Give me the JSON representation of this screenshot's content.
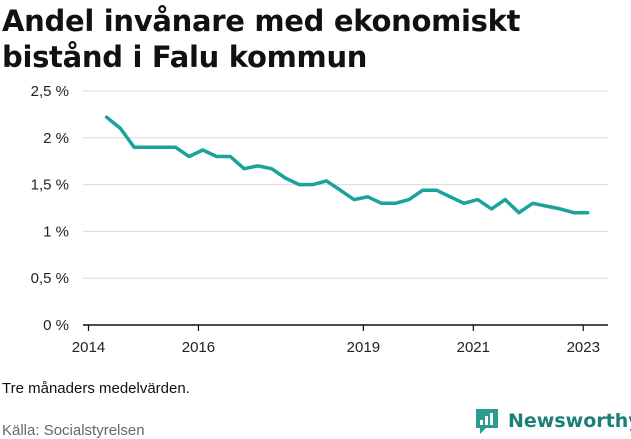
{
  "title": "Andel invånare med ekonomiskt bistånd i Falu kommun",
  "footnote": "Tre månaders medelvärden.",
  "source": "Källa: Socialstyrelsen",
  "brand": {
    "name": "Newsworthy",
    "icon": "newsworthy-logo-icon",
    "color": "#2a9d8f"
  },
  "chart_data": {
    "type": "line",
    "title": "Andel invånare med ekonomiskt bistånd i Falu kommun",
    "xlabel": "",
    "ylabel": "",
    "xlim": [
      2013.9,
      2023.45
    ],
    "ylim": [
      0,
      2.5
    ],
    "x_ticks": [
      2014,
      2016,
      2019,
      2021,
      2023
    ],
    "x_tick_labels": [
      "2014",
      "2016",
      "2019",
      "2021",
      "2023"
    ],
    "y_ticks": [
      0,
      0.5,
      1,
      1.5,
      2,
      2.5
    ],
    "y_tick_labels": [
      "0 %",
      "0,5 %",
      "1 %",
      "1,5 %",
      "2 %",
      "2,5 %"
    ],
    "grid": true,
    "line_color": "#1aa39a",
    "series": [
      {
        "x": [
          2014.33,
          2014.58,
          2014.83,
          2015.08,
          2015.33,
          2015.58,
          2015.83,
          2016.08,
          2016.33,
          2016.58,
          2016.83,
          2017.08,
          2017.33,
          2017.58,
          2017.83,
          2018.08,
          2018.33,
          2018.58,
          2018.83,
          2019.08,
          2019.33,
          2019.58,
          2019.83,
          2020.08,
          2020.33,
          2020.58,
          2020.83,
          2021.08,
          2021.33,
          2021.58,
          2021.83,
          2022.08,
          2022.33,
          2022.58,
          2022.83,
          2023.08
        ],
        "y": [
          2.22,
          2.1,
          1.9,
          1.9,
          1.9,
          1.9,
          1.8,
          1.87,
          1.8,
          1.8,
          1.67,
          1.7,
          1.67,
          1.57,
          1.5,
          1.5,
          1.54,
          1.44,
          1.34,
          1.37,
          1.3,
          1.3,
          1.34,
          1.44,
          1.44,
          1.37,
          1.3,
          1.34,
          1.24,
          1.34,
          1.2,
          1.3,
          1.27,
          1.24,
          1.2,
          1.2
        ]
      }
    ]
  }
}
